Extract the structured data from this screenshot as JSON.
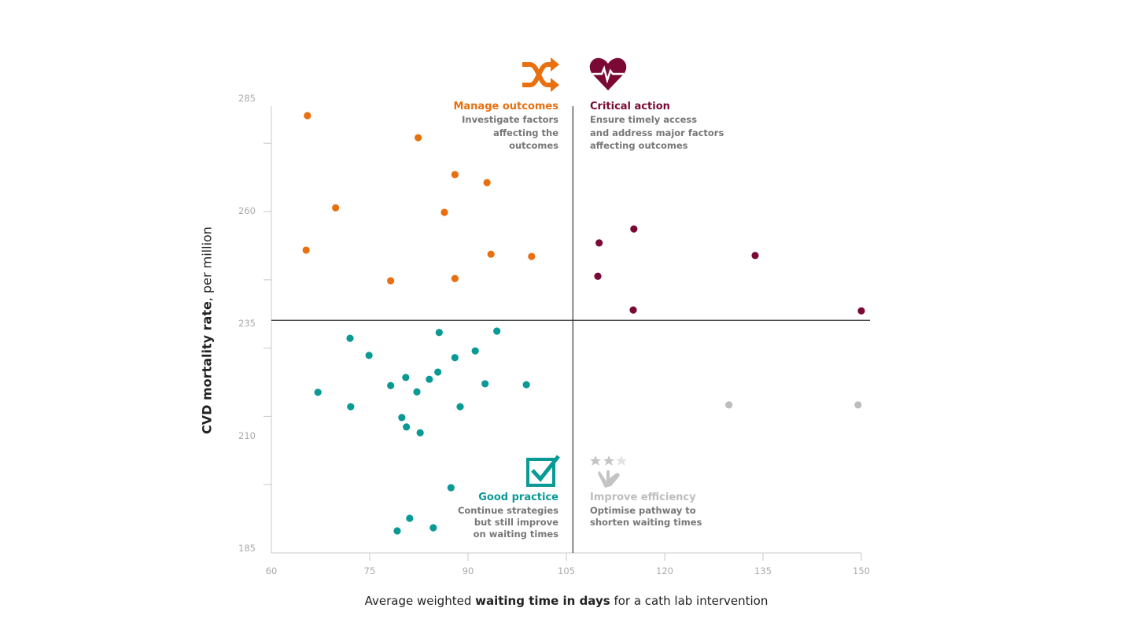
{
  "chart_data": {
    "type": "scatter",
    "xlabel_parts": [
      "Average weighted ",
      "waiting time in days",
      " for a cath lab intervention"
    ],
    "ylabel_parts": [
      "CVD mortality rate",
      ", per million"
    ],
    "xlim": [
      60,
      150
    ],
    "ylim": [
      185,
      285
    ],
    "x_ticks": [
      60,
      75,
      90,
      105,
      120,
      135,
      150
    ],
    "y_ticks": [
      185,
      210,
      235,
      260,
      285
    ],
    "grid": false,
    "thresholds": {
      "x": 106,
      "y": 236.7
    },
    "colors": {
      "manage": "#e8700f",
      "critical": "#7a0a35",
      "good": "#0a9a96",
      "efficiency": "#bdbdbd"
    },
    "series": [
      {
        "group": "manage",
        "points": [
          [
            65.5,
            282.2
          ],
          [
            82.4,
            277.3
          ],
          [
            88.0,
            269.1
          ],
          [
            92.9,
            267.3
          ],
          [
            69.8,
            261.7
          ],
          [
            86.4,
            260.7
          ],
          [
            65.3,
            252.3
          ],
          [
            93.5,
            251.4
          ],
          [
            99.7,
            250.9
          ],
          [
            78.2,
            245.5
          ],
          [
            88.0,
            246.0
          ]
        ]
      },
      {
        "group": "critical",
        "points": [
          [
            110.0,
            253.9
          ],
          [
            115.3,
            257.0
          ],
          [
            133.8,
            251.1
          ],
          [
            109.8,
            246.5
          ],
          [
            115.2,
            239.0
          ],
          [
            150.0,
            238.8
          ]
        ]
      },
      {
        "group": "efficiency",
        "points": [
          [
            129.8,
            217.9
          ],
          [
            149.5,
            217.9
          ]
        ]
      },
      {
        "group": "good",
        "points": [
          [
            72.0,
            232.7
          ],
          [
            74.9,
            228.9
          ],
          [
            67.1,
            220.7
          ],
          [
            72.1,
            217.5
          ],
          [
            85.6,
            234.0
          ],
          [
            94.4,
            234.3
          ],
          [
            91.1,
            229.9
          ],
          [
            88.0,
            228.4
          ],
          [
            85.4,
            225.2
          ],
          [
            80.5,
            224.0
          ],
          [
            84.1,
            223.6
          ],
          [
            78.2,
            222.2
          ],
          [
            82.2,
            220.8
          ],
          [
            92.6,
            222.6
          ],
          [
            98.9,
            222.4
          ],
          [
            88.8,
            217.5
          ],
          [
            79.9,
            215.1
          ],
          [
            80.6,
            213.0
          ],
          [
            82.7,
            211.7
          ],
          [
            87.4,
            199.5
          ],
          [
            81.1,
            192.7
          ],
          [
            84.7,
            190.6
          ],
          [
            79.2,
            189.9
          ]
        ]
      }
    ],
    "quadrants": {
      "manage": {
        "title": "Manage outcomes",
        "lines": [
          "Investigate factors",
          "affecting the",
          "outcomes"
        ],
        "icon": "shuffle-icon"
      },
      "critical": {
        "title": "Critical action",
        "lines": [
          "Ensure timely access",
          "and address major factors",
          "affecting outcomes"
        ],
        "icon": "heartbeat-icon"
      },
      "good": {
        "title": "Good practice",
        "lines": [
          "Continue strategies",
          "but still improve",
          "on waiting times"
        ],
        "icon": "checkbox-icon"
      },
      "efficiency": {
        "title": "Improve efficiency",
        "lines": [
          "Optimise pathway to",
          "shorten waiting times"
        ],
        "icon": "stars-hand-icon"
      }
    }
  }
}
